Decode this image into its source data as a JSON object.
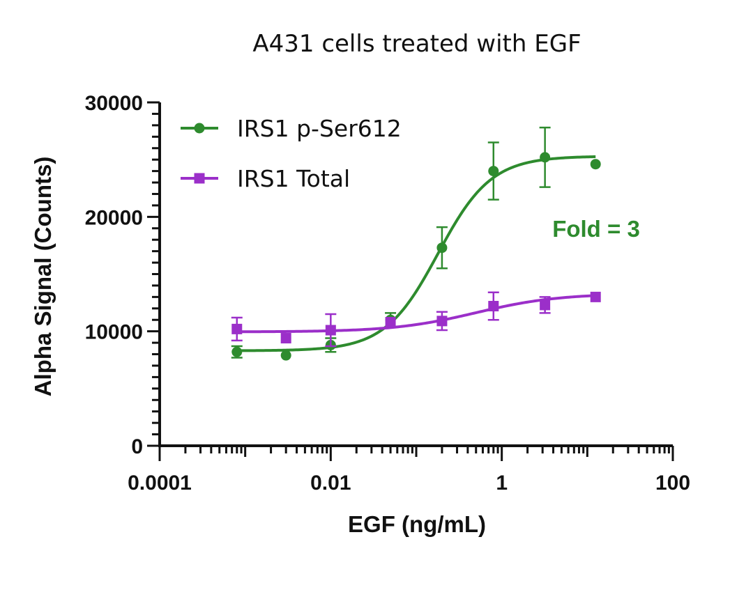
{
  "chart_data": {
    "type": "scatter",
    "title": "A431 cells treated with EGF",
    "xlabel": "EGF (ng/mL)",
    "ylabel": "Alpha Signal (Counts)",
    "xscale": "log",
    "xlim": [
      0.0001,
      100
    ],
    "ylim": [
      0,
      30000
    ],
    "x_ticks": [
      0.0001,
      0.01,
      1,
      100
    ],
    "x_tick_labels": [
      "0.0001",
      "0.01",
      "1",
      "100"
    ],
    "y_ticks": [
      0,
      10000,
      20000,
      30000
    ],
    "y_tick_labels": [
      "0",
      "10000",
      "20000",
      "30000"
    ],
    "legend_position": "top-left",
    "series": [
      {
        "name": "IRS1 p-Ser612",
        "color": "#2e8b2e",
        "marker": "circle",
        "x": [
          0.0008,
          0.003,
          0.01,
          0.05,
          0.2,
          0.8,
          3.2,
          12.5
        ],
        "y": [
          8200,
          7900,
          8800,
          11000,
          17300,
          24000,
          25200,
          24600
        ],
        "err": [
          500,
          0,
          600,
          600,
          1800,
          2500,
          2600,
          0
        ],
        "fit": {
          "bottom": 8300,
          "top": 25300,
          "ec50": 0.18,
          "hill": 1.4
        }
      },
      {
        "name": "IRS1 Total",
        "color": "#9b2fc9",
        "marker": "square",
        "x": [
          0.0008,
          0.003,
          0.01,
          0.05,
          0.2,
          0.8,
          3.2,
          12.5
        ],
        "y": [
          10200,
          9400,
          10100,
          10800,
          10900,
          12200,
          12300,
          13000
        ],
        "err": [
          1000,
          0,
          1400,
          0,
          800,
          1200,
          700,
          0
        ],
        "fit": {
          "bottom": 9950,
          "top": 13300,
          "ec50": 0.5,
          "hill": 0.9
        }
      }
    ],
    "annotations": [
      {
        "text": "Fold = 3",
        "color": "#2e8b2e"
      }
    ]
  }
}
